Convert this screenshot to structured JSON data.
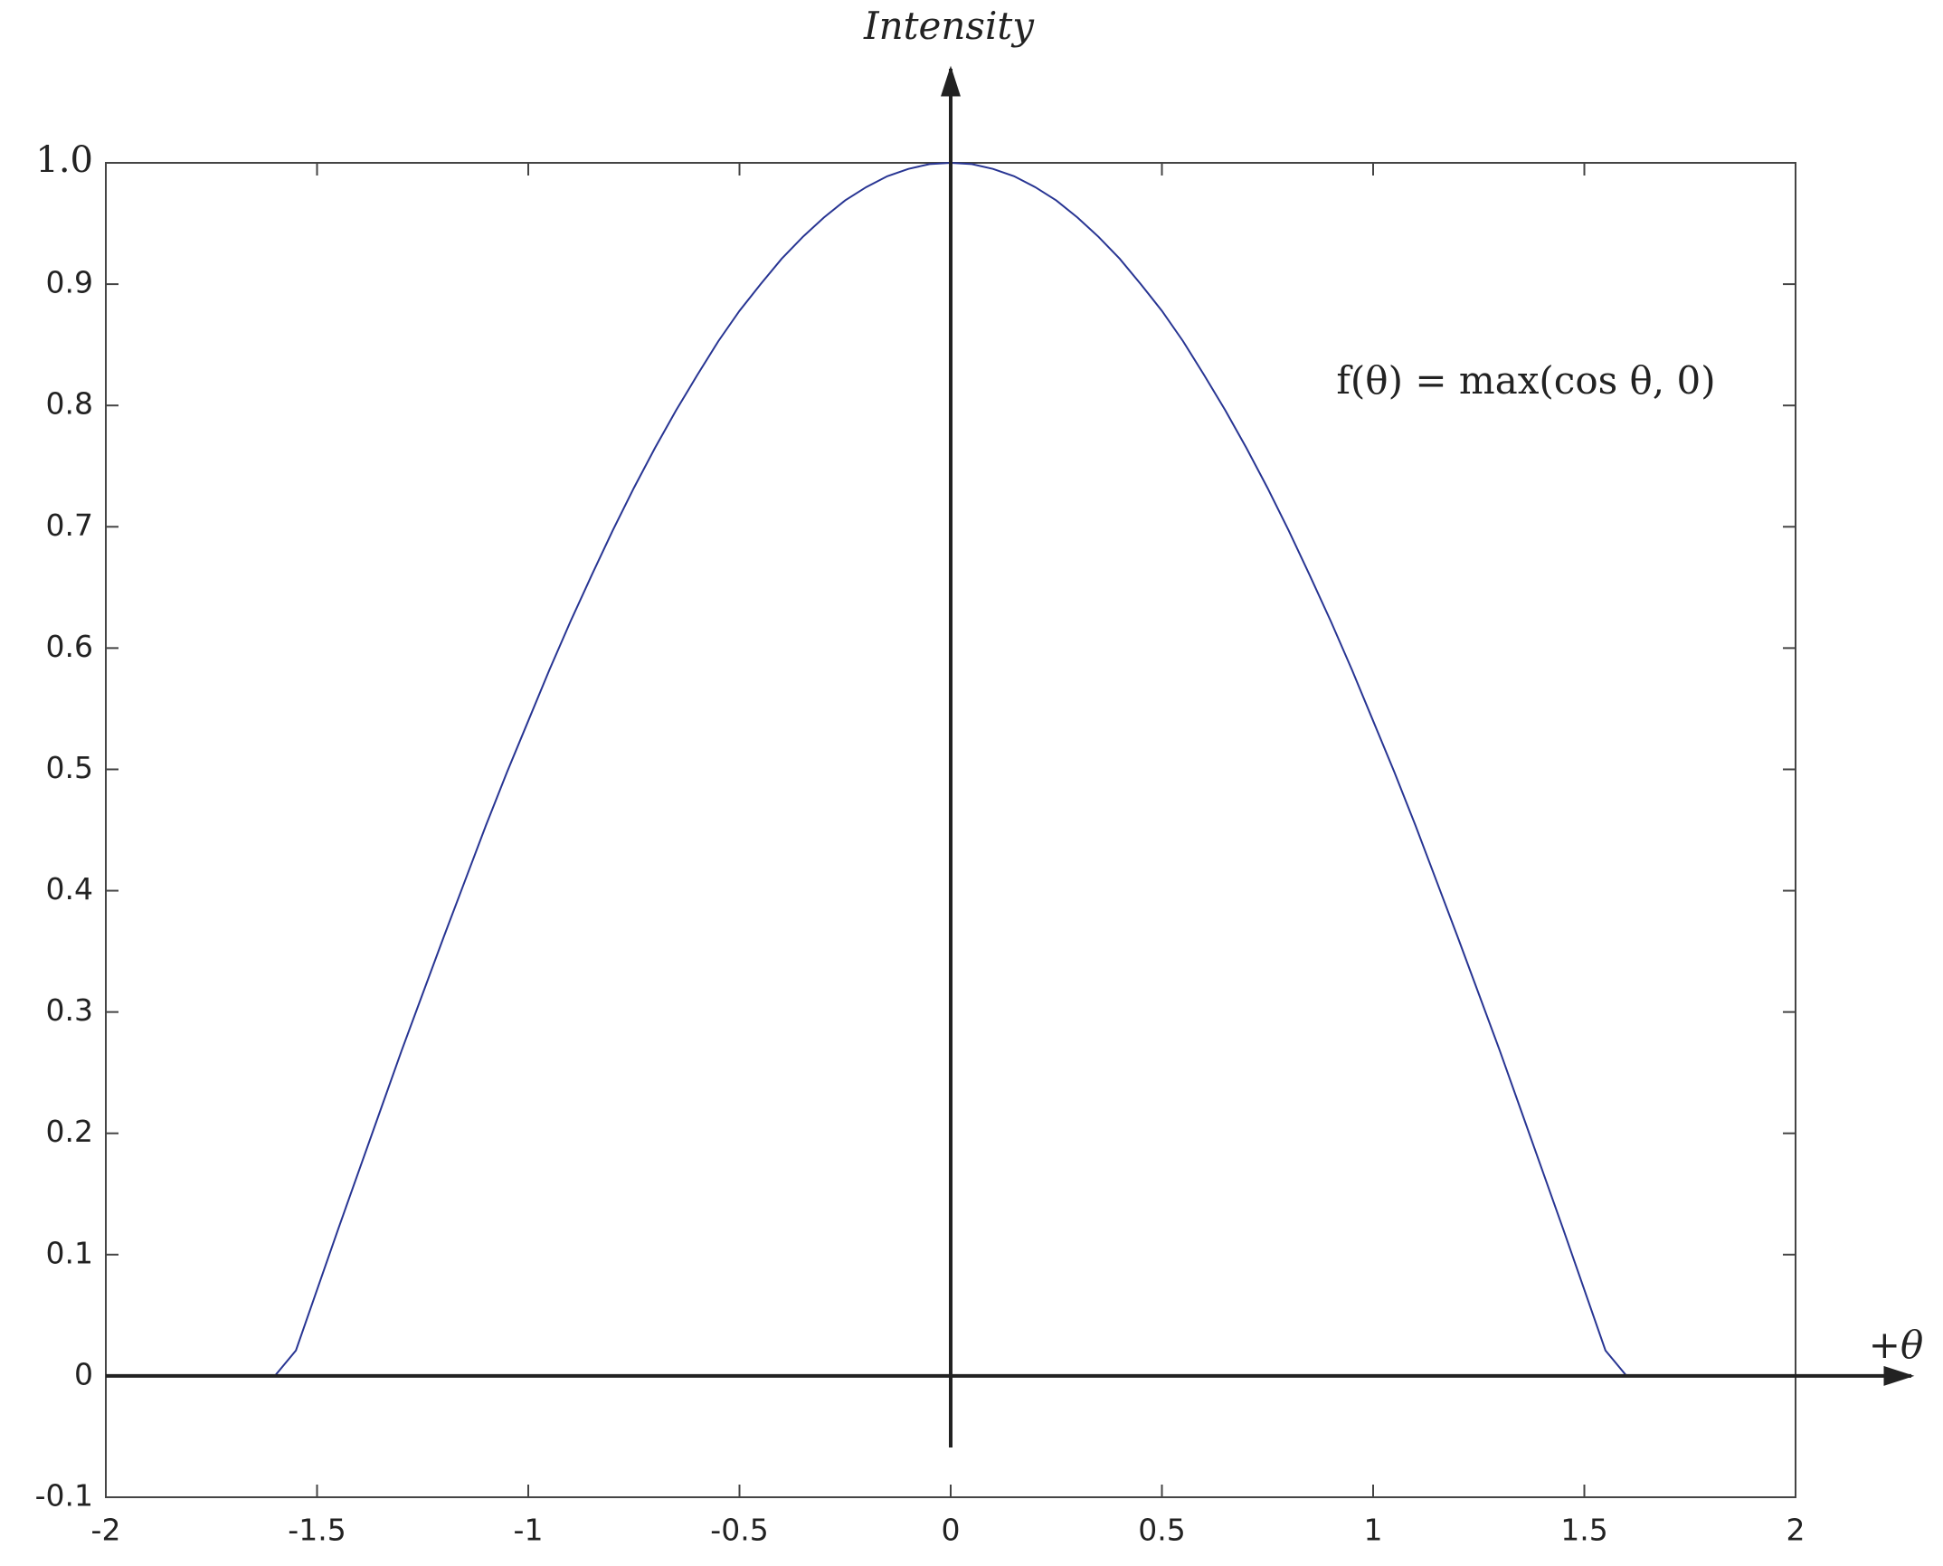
{
  "chart_data": {
    "type": "line",
    "ylabel": "Intensity",
    "xlabel": "+θ",
    "annotation": "f(θ) = max(cos θ, 0)",
    "color": "#283593",
    "x": [
      -2,
      -1.95,
      -1.9,
      -1.85,
      -1.8,
      -1.75,
      -1.7,
      -1.65,
      -1.6,
      -1.55,
      -1.5,
      -1.45,
      -1.4,
      -1.35,
      -1.3,
      -1.25,
      -1.2,
      -1.15,
      -1.1,
      -1.05,
      -1,
      -0.95,
      -0.9,
      -0.85,
      -0.8,
      -0.75,
      -0.7,
      -0.65,
      -0.6,
      -0.55,
      -0.5,
      -0.45,
      -0.4,
      -0.35,
      -0.3,
      -0.25,
      -0.2,
      -0.15,
      -0.1,
      -0.05,
      0,
      0.05,
      0.1,
      0.15,
      0.2,
      0.25,
      0.3,
      0.35,
      0.4,
      0.45,
      0.5,
      0.55,
      0.6,
      0.65,
      0.7,
      0.75,
      0.8,
      0.85,
      0.9,
      0.95,
      1,
      1.05,
      1.1,
      1.15,
      1.2,
      1.25,
      1.3,
      1.35,
      1.4,
      1.45,
      1.5,
      1.55,
      1.6,
      1.65,
      1.7,
      1.75,
      1.8,
      1.85,
      1.9,
      1.95,
      2
    ],
    "values": [
      0,
      0,
      0,
      0,
      0,
      0,
      0,
      0,
      0,
      0.021,
      0.071,
      0.121,
      0.17,
      0.219,
      0.268,
      0.315,
      0.362,
      0.408,
      0.454,
      0.498,
      0.54,
      0.582,
      0.622,
      0.66,
      0.697,
      0.732,
      0.765,
      0.796,
      0.825,
      0.853,
      0.878,
      0.9,
      0.921,
      0.939,
      0.955,
      0.969,
      0.98,
      0.989,
      0.995,
      0.999,
      1,
      0.999,
      0.995,
      0.989,
      0.98,
      0.969,
      0.955,
      0.939,
      0.921,
      0.9,
      0.878,
      0.853,
      0.825,
      0.796,
      0.765,
      0.732,
      0.697,
      0.66,
      0.622,
      0.582,
      0.54,
      0.498,
      0.454,
      0.408,
      0.362,
      0.315,
      0.268,
      0.219,
      0.17,
      0.121,
      0.071,
      0.021,
      0,
      0,
      0,
      0,
      0,
      0,
      0,
      0,
      0
    ],
    "xlim": [
      -2,
      2
    ],
    "ylim": [
      -0.1,
      1
    ],
    "xticks": [
      -2,
      -1.5,
      -1,
      -0.5,
      0,
      0.5,
      1,
      1.5,
      2
    ],
    "yticks": [
      -0.1,
      0,
      0.1,
      0.2,
      0.3,
      0.4,
      0.5,
      0.6,
      0.7,
      0.8,
      0.9,
      {
        "value": 1,
        "label": "1.0"
      }
    ]
  }
}
